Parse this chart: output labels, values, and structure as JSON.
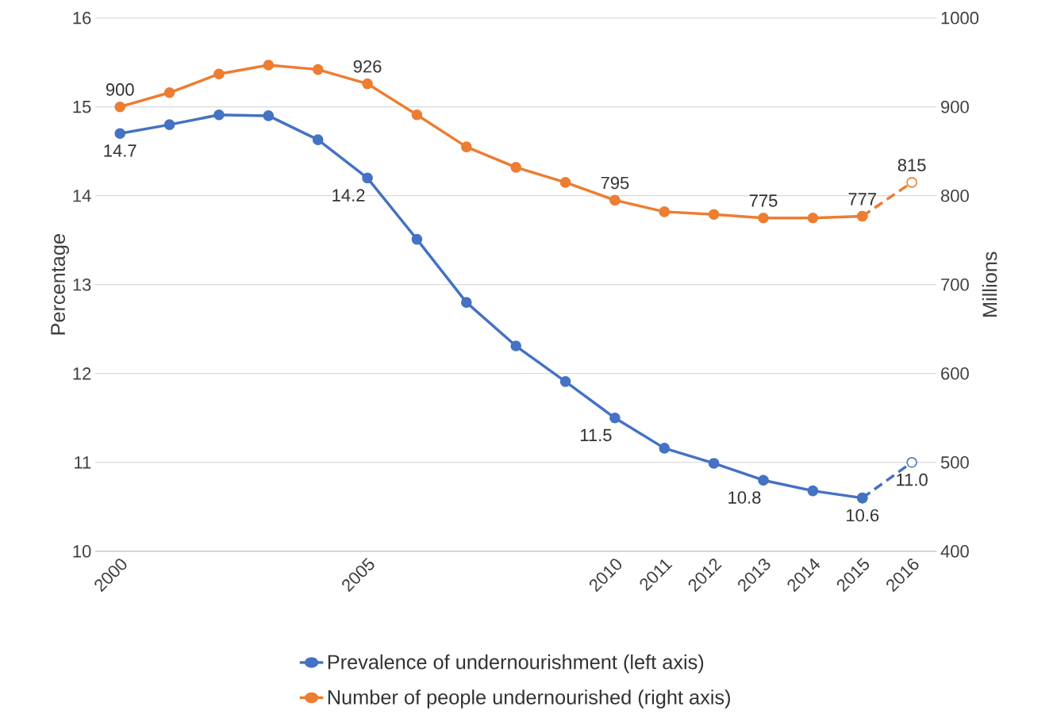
{
  "chart_data": {
    "type": "line",
    "ylabel": "Percentage",
    "y2label": "Millions",
    "categories": [
      "2000",
      null,
      null,
      null,
      null,
      "2005",
      null,
      null,
      null,
      null,
      "2010",
      "2011",
      "2012",
      "2013",
      "2014",
      "2015",
      "2016"
    ],
    "ylim": [
      10,
      16
    ],
    "yticks": [
      10,
      11,
      12,
      13,
      14,
      15,
      16
    ],
    "y2lim": [
      400,
      1000
    ],
    "y2ticks": [
      400,
      500,
      600,
      700,
      800,
      900,
      1000
    ],
    "grid": "y",
    "legend": "bottom",
    "marker": "circle",
    "series": [
      {
        "name": "Prevalence of undernourishment  (left axis)",
        "color": "#4472c4",
        "axis": "y",
        "line_style": "solid",
        "values": [
          14.7,
          14.8,
          14.91,
          14.9,
          14.63,
          14.2,
          13.51,
          12.8,
          12.31,
          11.91,
          11.5,
          11.16,
          10.99,
          10.8,
          10.68,
          10.6,
          null
        ],
        "value_labels": [
          "14.7",
          null,
          null,
          null,
          null,
          "14.2",
          null,
          null,
          null,
          null,
          "11.5",
          null,
          null,
          "10.8",
          null,
          "10.6",
          null
        ]
      },
      {
        "color": "#4472c4",
        "axis": "y",
        "line_style": "dashed",
        "values": [
          null,
          null,
          null,
          null,
          null,
          null,
          null,
          null,
          null,
          null,
          null,
          null,
          null,
          null,
          null,
          10.6,
          11.0
        ],
        "value_labels": [
          null,
          null,
          null,
          null,
          null,
          null,
          null,
          null,
          null,
          null,
          null,
          null,
          null,
          null,
          null,
          null,
          "11.0"
        ]
      },
      {
        "name": "Number of people undernourished (right axis)",
        "color": "#ed7d31",
        "axis": "y2",
        "line_style": "solid",
        "values": [
          900,
          916,
          937,
          947,
          942,
          926,
          891,
          855,
          832,
          815,
          795,
          782,
          779,
          775,
          775,
          777,
          null
        ],
        "value_labels": [
          "900",
          null,
          null,
          null,
          null,
          "926",
          null,
          null,
          null,
          null,
          "795",
          null,
          null,
          "775",
          null,
          "777",
          null
        ]
      },
      {
        "color": "#ed7d31",
        "axis": "y2",
        "line_style": "dashed",
        "values": [
          null,
          null,
          null,
          null,
          null,
          null,
          null,
          null,
          null,
          null,
          null,
          null,
          null,
          null,
          null,
          777,
          815
        ],
        "value_labels": [
          null,
          null,
          null,
          null,
          null,
          null,
          null,
          null,
          null,
          null,
          null,
          null,
          null,
          null,
          null,
          null,
          "815"
        ]
      }
    ]
  }
}
